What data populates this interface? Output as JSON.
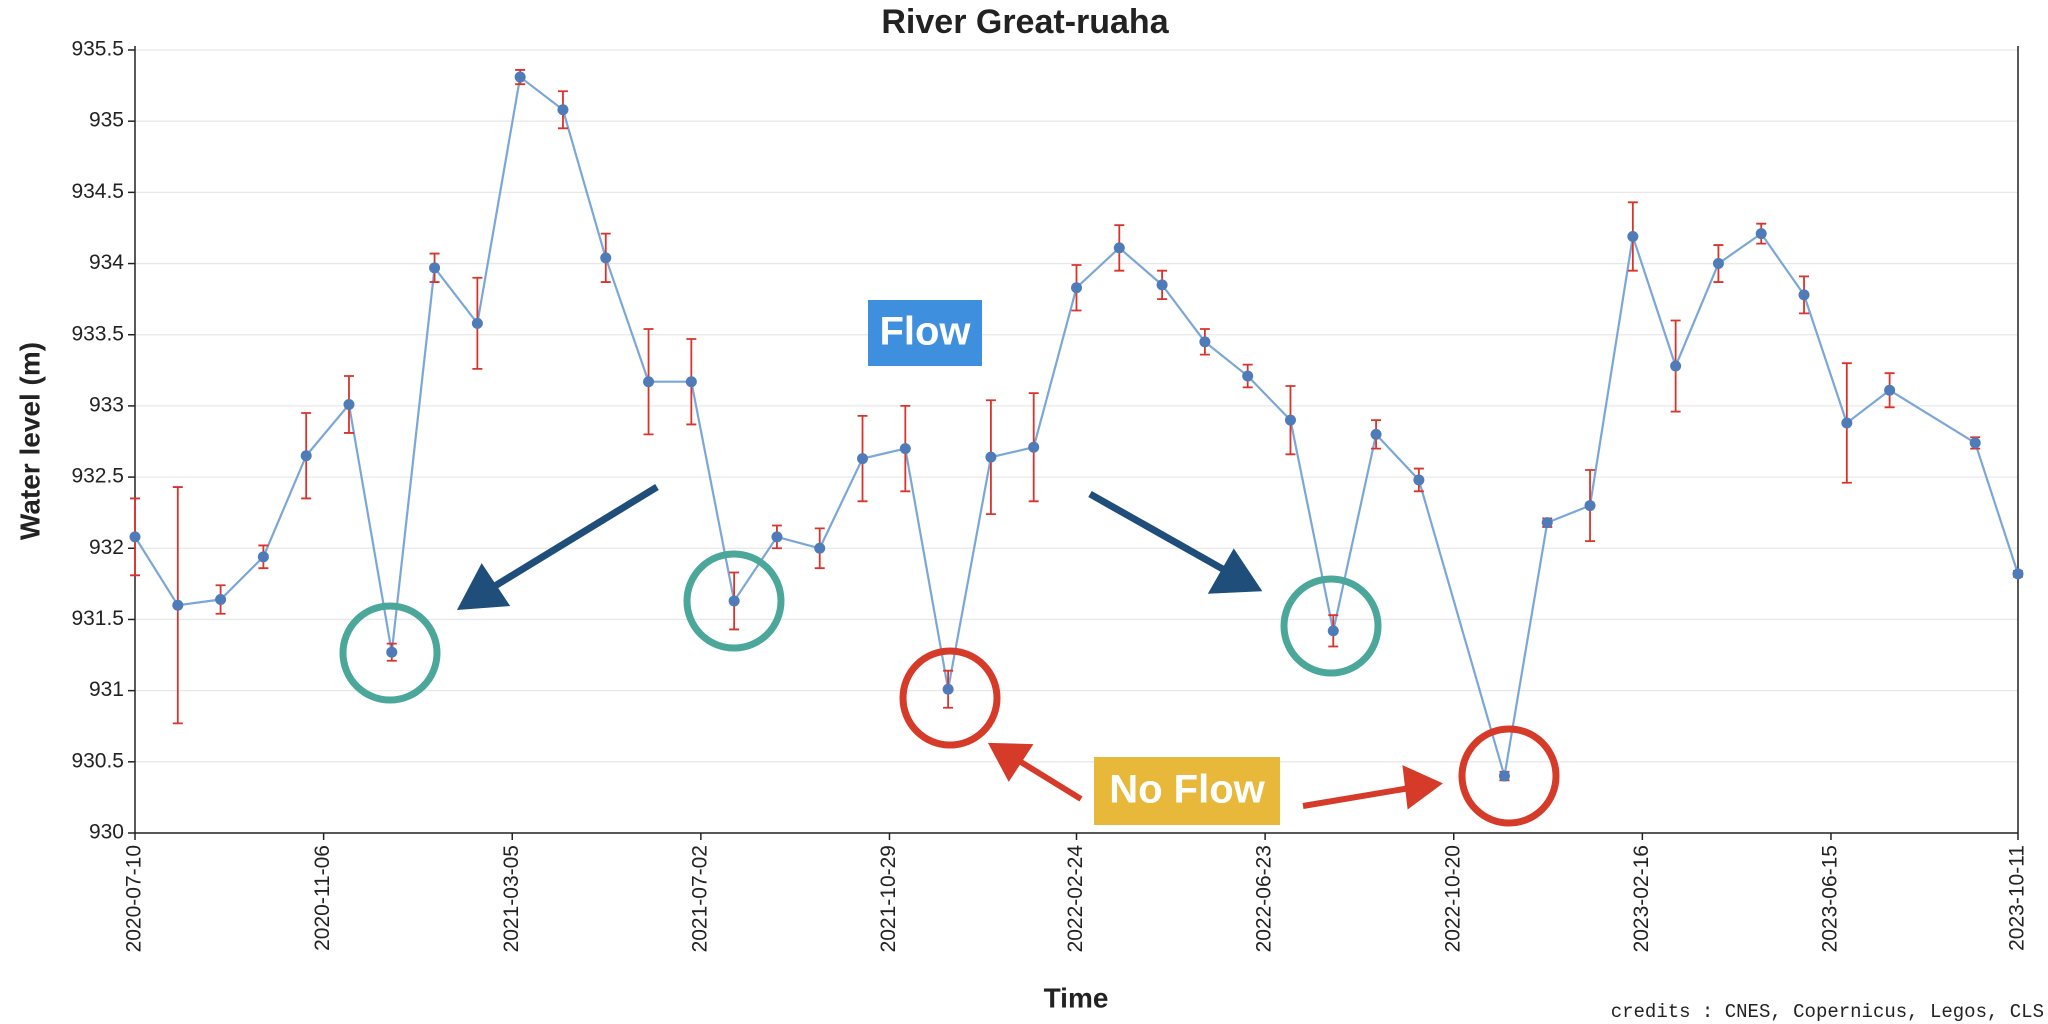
{
  "chart_data": {
    "type": "line",
    "title": "River Great-ruaha",
    "xlabel": "Time",
    "ylabel": "Water level (m)",
    "x": [
      "2020-07-10",
      "2020-08-06",
      "2020-09-02",
      "2020-09-29",
      "2020-10-26",
      "2020-11-22",
      "2020-12-19",
      "2021-01-15",
      "2021-02-11",
      "2021-03-10",
      "2021-04-06",
      "2021-05-03",
      "2021-05-30",
      "2021-06-26",
      "2021-07-23",
      "2021-08-19",
      "2021-09-15",
      "2021-10-12",
      "2021-11-08",
      "2021-12-05",
      "2022-01-01",
      "2022-01-28",
      "2022-02-24",
      "2022-03-23",
      "2022-04-19",
      "2022-05-16",
      "2022-06-12",
      "2022-07-09",
      "2022-08-05",
      "2022-09-01",
      "2022-09-28",
      "2022-11-21",
      "2022-12-18",
      "2023-01-14",
      "2023-02-10",
      "2023-03-09",
      "2023-04-05",
      "2023-05-02",
      "2023-05-29",
      "2023-06-25",
      "2023-07-22",
      "2023-09-14",
      "2023-10-11"
    ],
    "series": [
      {
        "color": "#7ba7d8",
        "marker_color": "#4f7cb8",
        "error_color": "#d9342b",
        "values": [
          932.08,
          931.6,
          931.64,
          931.94,
          932.65,
          933.01,
          931.27,
          933.97,
          933.58,
          935.31,
          935.08,
          934.04,
          933.17,
          933.17,
          931.63,
          932.08,
          932.0,
          932.63,
          932.7,
          931.01,
          932.64,
          932.71,
          933.83,
          934.11,
          933.85,
          933.45,
          933.21,
          932.9,
          931.42,
          932.8,
          932.48,
          930.4,
          932.18,
          932.3,
          934.19,
          933.28,
          934.0,
          934.21,
          933.78,
          932.88,
          933.11,
          932.74,
          931.82
        ],
        "errors": [
          0.27,
          0.83,
          0.1,
          0.08,
          0.3,
          0.2,
          0.06,
          0.1,
          0.32,
          0.05,
          0.13,
          0.17,
          0.37,
          0.3,
          0.2,
          0.08,
          0.14,
          0.3,
          0.3,
          0.13,
          0.4,
          0.38,
          0.16,
          0.16,
          0.1,
          0.09,
          0.08,
          0.24,
          0.11,
          0.1,
          0.08,
          0.03,
          0.03,
          0.25,
          0.24,
          0.32,
          0.13,
          0.07,
          0.13,
          0.42,
          0.12,
          0.04,
          0.02
        ]
      }
    ],
    "xlim": [
      "2020-07-10",
      "2023-10-11"
    ],
    "xticks": [
      "2020-07-10",
      "2020-11-06",
      "2021-03-05",
      "2021-07-02",
      "2021-10-29",
      "2022-02-24",
      "2022-06-23",
      "2022-10-20",
      "2023-02-16",
      "2023-06-15",
      "2023-10-11"
    ],
    "ylim": [
      930,
      935.5
    ],
    "yticks": [
      930,
      930.5,
      931,
      931.5,
      932,
      932.5,
      933,
      933.5,
      934,
      934.5,
      935,
      935.5
    ],
    "grid": true,
    "annotations": [
      "Flow",
      "No Flow"
    ],
    "credits": "credits : CNES, Copernicus, Legos, CLS"
  }
}
